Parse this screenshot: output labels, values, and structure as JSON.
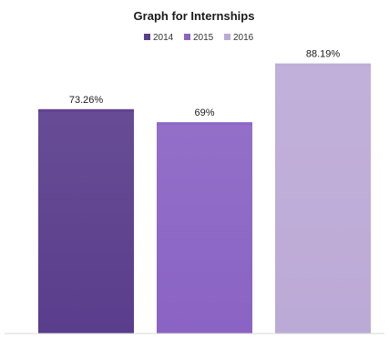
{
  "chart_data": {
    "type": "bar",
    "title": "Graph for Internships",
    "categories": [
      "2014",
      "2015",
      "2016"
    ],
    "values": [
      73.26,
      69,
      88.19
    ],
    "value_labels": [
      "73.26%",
      "69%",
      "88.19%"
    ],
    "colors": [
      "#5a3d8c",
      "#8a63c4",
      "#bcaad6"
    ],
    "legend": {
      "placement": "top-center",
      "entries": [
        "2014",
        "2015",
        "2016"
      ]
    },
    "xlabel": "",
    "ylabel": "",
    "ylim": [
      0,
      100
    ],
    "grid": false
  }
}
